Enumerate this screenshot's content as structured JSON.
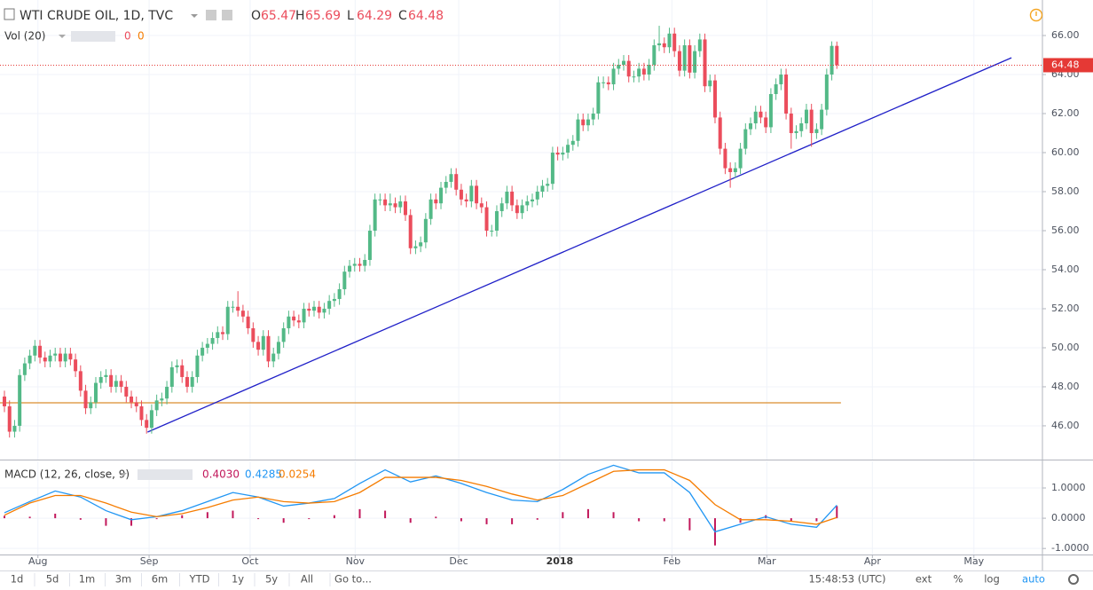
{
  "ui": {
    "symbol": "WTI CRUDE OIL, 1D, TVC",
    "ohlc_letters": [
      "O",
      "H",
      "L",
      "C"
    ],
    "volume": {
      "title": "Vol (20)",
      "values": [
        "0",
        "0"
      ]
    },
    "macd_title": "MACD (12, 26, close, 9)",
    "toolbar": [
      "1d",
      "5d",
      "1m",
      "3m",
      "6m",
      "YTD",
      "1y",
      "5y",
      "All",
      "Go to..."
    ],
    "clock": "15:48:53 (UTC)",
    "toggles": [
      "ext",
      "%",
      "log",
      "auto"
    ]
  },
  "chart_data": [
    {
      "type": "candlestick",
      "title": "WTI CRUDE OIL, 1D, TVC",
      "up_color": "#53b987",
      "down_color": "#eb4d5c",
      "grid": true,
      "xlim": [
        -0.874,
        204.5
      ],
      "xticks": [
        {
          "value": 6.6,
          "label": "Aug"
        },
        {
          "value": 28.5,
          "label": "Sep"
        },
        {
          "value": 48.4,
          "label": "Oct"
        },
        {
          "value": 69.1,
          "label": "Nov"
        },
        {
          "value": 89.5,
          "label": "Dec"
        },
        {
          "value": 109.4,
          "label": "2018"
        },
        {
          "value": 131.5,
          "label": "Feb"
        },
        {
          "value": 150.2,
          "label": "Mar"
        },
        {
          "value": 171,
          "label": "Apr"
        },
        {
          "value": 191,
          "label": "May"
        }
      ],
      "ylim": [
        44.27,
        67.82
      ],
      "yticks": [
        {
          "value": 46,
          "label": "46.00"
        },
        {
          "value": 48,
          "label": "48.00"
        },
        {
          "value": 50,
          "label": "50.00"
        },
        {
          "value": 52,
          "label": "52.00"
        },
        {
          "value": 54,
          "label": "54.00"
        },
        {
          "value": 56,
          "label": "56.00"
        },
        {
          "value": 58,
          "label": "58.00"
        },
        {
          "value": 60,
          "label": "60.00"
        },
        {
          "value": 62,
          "label": "62.00"
        },
        {
          "value": 64,
          "label": "64.00"
        },
        {
          "value": 66,
          "label": "66.00"
        }
      ],
      "o": [
        47.5,
        47.0,
        45.7,
        46.0,
        48.6,
        49.2,
        49.6,
        50.1,
        49.5,
        49.3,
        49.6,
        49.7,
        49.3,
        49.7,
        49.4,
        48.8,
        47.8,
        46.9,
        47.2,
        48.2,
        48.5,
        48.6,
        48.0,
        48.3,
        48.0,
        47.5,
        47.2,
        47.0,
        46.3,
        45.9,
        46.8,
        47.3,
        47.4,
        48.0,
        49.0,
        49.1,
        48.5,
        48.0,
        48.5,
        49.6,
        50.0,
        50.2,
        50.5,
        50.8,
        50.7,
        52.1,
        52.1,
        51.9,
        51.6,
        51.0,
        50.3,
        49.9,
        50.6,
        49.3,
        49.7,
        50.3,
        51.0,
        51.6,
        51.4,
        51.3,
        52.0,
        51.9,
        52.1,
        51.8,
        52.0,
        52.4,
        52.5,
        53.0,
        53.9,
        54.2,
        54.3,
        54.2,
        54.5,
        56.0,
        57.6,
        57.6,
        57.3,
        57.4,
        57.2,
        57.5,
        56.8,
        55.1,
        55.2,
        55.4,
        56.6,
        57.6,
        57.4,
        58.2,
        58.5,
        58.9,
        58.1,
        57.6,
        57.5,
        58.3,
        57.4,
        57.2,
        56.0,
        56.0,
        57.0,
        57.4,
        58.0,
        57.3,
        56.9,
        57.3,
        57.5,
        57.6,
        58.0,
        58.3,
        58.4,
        60.0,
        59.9,
        60.0,
        60.4,
        60.6,
        61.7,
        61.4,
        61.7,
        62.0,
        63.6,
        63.6,
        63.5,
        64.3,
        64.5,
        64.7,
        63.9,
        63.9,
        64.3,
        64.0,
        64.5,
        65.5,
        65.6,
        65.4,
        66.1,
        65.2,
        64.2,
        65.5,
        64.1,
        65.2,
        65.8,
        63.4,
        63.7,
        61.8,
        60.2,
        59.2,
        59.0,
        59.2,
        60.2,
        61.2,
        61.5,
        62.1,
        61.8,
        61.3,
        63.0,
        63.5,
        64.0,
        62.0,
        61.0,
        61.1,
        61.5,
        62.2,
        61.0,
        61.2,
        62.2,
        64.0,
        65.47
      ],
      "h": [
        47.8,
        47.3,
        46.3,
        48.9,
        49.5,
        49.9,
        50.4,
        50.4,
        49.8,
        49.9,
        50.0,
        50.0,
        50.0,
        50.0,
        49.7,
        49.1,
        48.1,
        47.5,
        48.5,
        48.8,
        48.9,
        48.9,
        48.6,
        48.6,
        48.3,
        47.8,
        47.5,
        47.3,
        46.6,
        47.1,
        47.6,
        47.7,
        48.3,
        49.3,
        49.4,
        49.4,
        48.8,
        48.8,
        49.9,
        50.3,
        50.5,
        50.8,
        51.1,
        51.1,
        52.4,
        52.4,
        52.9,
        52.2,
        51.9,
        51.3,
        50.6,
        50.9,
        50.9,
        50.0,
        50.6,
        51.3,
        51.9,
        51.9,
        51.7,
        52.3,
        52.3,
        52.4,
        52.4,
        52.3,
        52.7,
        52.8,
        53.3,
        54.2,
        54.5,
        54.6,
        54.6,
        54.8,
        56.3,
        57.9,
        57.9,
        57.9,
        57.9,
        57.7,
        57.8,
        57.8,
        57.1,
        55.5,
        55.7,
        56.9,
        57.9,
        57.9,
        58.5,
        58.8,
        59.2,
        59.2,
        58.4,
        57.9,
        58.6,
        58.6,
        57.7,
        57.5,
        56.3,
        57.3,
        57.7,
        58.3,
        58.3,
        57.6,
        57.6,
        57.8,
        57.9,
        58.3,
        58.6,
        58.7,
        60.3,
        60.3,
        60.3,
        60.7,
        60.9,
        62.0,
        62.0,
        62.0,
        62.3,
        63.9,
        63.9,
        63.9,
        64.6,
        64.8,
        65.0,
        65.0,
        64.2,
        64.6,
        64.6,
        64.8,
        65.8,
        66.5,
        65.9,
        66.4,
        66.4,
        65.5,
        65.8,
        65.8,
        65.5,
        66.1,
        66.1,
        64.0,
        64.0,
        62.1,
        60.5,
        59.5,
        59.5,
        60.5,
        61.5,
        61.8,
        62.4,
        62.4,
        62.1,
        63.3,
        63.8,
        64.3,
        64.3,
        62.3,
        61.4,
        61.8,
        62.5,
        62.5,
        61.5,
        62.5,
        64.3,
        65.7,
        65.69
      ],
      "l": [
        46.7,
        45.4,
        45.4,
        45.7,
        48.3,
        48.9,
        49.3,
        49.2,
        49.0,
        49.0,
        49.3,
        49.0,
        49.0,
        49.1,
        48.5,
        47.5,
        46.6,
        46.6,
        46.9,
        47.9,
        48.2,
        47.7,
        47.7,
        47.7,
        47.2,
        46.9,
        46.7,
        46.0,
        45.6,
        45.6,
        46.5,
        47.0,
        47.1,
        47.7,
        48.7,
        48.2,
        47.7,
        47.7,
        48.2,
        49.3,
        49.7,
        49.9,
        50.2,
        50.4,
        50.4,
        51.8,
        51.6,
        51.3,
        50.7,
        50.0,
        49.6,
        49.6,
        49.0,
        49.0,
        49.4,
        50.0,
        50.7,
        51.1,
        51.0,
        51.0,
        51.6,
        51.6,
        51.5,
        51.5,
        51.7,
        52.1,
        52.2,
        52.7,
        53.6,
        53.9,
        53.9,
        53.9,
        54.2,
        55.7,
        57.3,
        57.0,
        57.0,
        56.9,
        56.9,
        56.5,
        54.8,
        54.8,
        54.9,
        55.1,
        56.3,
        57.1,
        57.1,
        57.9,
        58.2,
        57.8,
        57.3,
        57.2,
        57.2,
        57.1,
        56.9,
        55.7,
        55.7,
        55.7,
        56.7,
        57.1,
        57.0,
        56.6,
        56.6,
        57.0,
        57.2,
        57.3,
        57.7,
        58.0,
        58.1,
        59.6,
        59.6,
        59.7,
        60.1,
        60.3,
        61.1,
        61.1,
        61.4,
        61.7,
        63.3,
        63.2,
        63.2,
        64.0,
        64.2,
        63.6,
        63.6,
        63.6,
        63.7,
        63.7,
        64.2,
        65.2,
        65.1,
        65.1,
        64.9,
        63.9,
        63.9,
        63.8,
        63.8,
        64.9,
        63.1,
        63.1,
        61.5,
        59.9,
        58.9,
        58.2,
        58.7,
        58.9,
        59.9,
        60.9,
        61.2,
        61.5,
        61.0,
        61.0,
        62.7,
        63.2,
        61.7,
        60.2,
        60.7,
        60.8,
        61.2,
        60.3,
        60.7,
        60.9,
        61.9,
        63.7,
        64.29
      ],
      "c": [
        47.0,
        45.7,
        46.0,
        48.6,
        49.2,
        49.6,
        50.1,
        49.5,
        49.3,
        49.6,
        49.7,
        49.3,
        49.7,
        49.4,
        48.8,
        47.8,
        46.9,
        47.2,
        48.2,
        48.5,
        48.6,
        48.0,
        48.3,
        48.0,
        47.5,
        47.2,
        47.0,
        46.3,
        45.9,
        46.8,
        47.3,
        47.4,
        48.0,
        49.0,
        49.1,
        48.5,
        48.0,
        48.5,
        49.6,
        50.0,
        50.2,
        50.5,
        50.8,
        50.7,
        52.1,
        52.1,
        51.9,
        51.6,
        51.0,
        50.3,
        49.9,
        50.6,
        49.3,
        49.7,
        50.3,
        51.0,
        51.6,
        51.4,
        51.3,
        52.0,
        51.9,
        52.1,
        51.8,
        52.0,
        52.4,
        52.5,
        53.0,
        53.9,
        54.2,
        54.3,
        54.2,
        54.5,
        56.0,
        57.6,
        57.6,
        57.3,
        57.4,
        57.2,
        57.5,
        56.8,
        55.1,
        55.2,
        55.4,
        56.6,
        57.6,
        57.4,
        58.2,
        58.5,
        58.9,
        58.1,
        57.6,
        57.5,
        58.3,
        57.4,
        57.2,
        56.0,
        56.0,
        57.0,
        57.4,
        58.0,
        57.3,
        56.9,
        57.3,
        57.5,
        57.6,
        58.0,
        58.3,
        58.4,
        60.0,
        59.9,
        60.0,
        60.4,
        60.6,
        61.7,
        61.4,
        61.7,
        62.0,
        63.6,
        63.6,
        63.5,
        64.3,
        64.5,
        64.7,
        63.9,
        63.9,
        64.3,
        64.0,
        64.5,
        65.5,
        65.6,
        65.4,
        66.1,
        65.2,
        64.2,
        65.5,
        64.1,
        65.2,
        65.8,
        63.4,
        63.7,
        61.8,
        60.2,
        59.2,
        59.0,
        59.2,
        60.2,
        61.2,
        61.5,
        62.1,
        61.8,
        61.3,
        63.0,
        63.5,
        64.0,
        62.0,
        61.0,
        61.1,
        61.5,
        62.2,
        61.0,
        61.2,
        62.2,
        64.0,
        65.47,
        64.48
      ],
      "last_price_color": "#e53935",
      "hline": {
        "value": 47.18,
        "color": "#e0a050"
      },
      "trendline": {
        "x": [
          28.2,
          198.4
        ],
        "y": [
          45.68,
          64.86
        ],
        "color": "#2020c8"
      }
    },
    {
      "type": "macd",
      "title": "MACD (12, 26, close, 9)",
      "grid": true,
      "xlim": [
        -0.874,
        204.5
      ],
      "ylim": [
        -1.2,
        1.88
      ],
      "yticks": [
        {
          "value": 1,
          "label": "1.0000"
        },
        {
          "value": 0,
          "label": "0.0000"
        },
        {
          "value": -1,
          "label": "-1.0000"
        }
      ],
      "x": [
        0,
        5,
        10,
        15,
        20,
        25,
        30,
        35,
        40,
        45,
        50,
        55,
        60,
        65,
        70,
        75,
        80,
        85,
        90,
        95,
        100,
        105,
        110,
        115,
        120,
        125,
        130,
        135,
        140,
        145,
        150,
        155,
        160,
        164
      ],
      "series": [
        {
          "kind": "bar",
          "color": "#c2185b",
          "value_label": "0.4030",
          "values": [
            0.08,
            0.05,
            0.15,
            -0.05,
            -0.25,
            -0.25,
            0,
            0.1,
            0.2,
            0.25,
            0,
            -0.15,
            0,
            0.1,
            0.3,
            0.25,
            -0.15,
            0.05,
            -0.1,
            -0.2,
            -0.2,
            -0.05,
            0.2,
            0.3,
            0.2,
            -0.1,
            -0.1,
            -0.4,
            -0.9,
            -0.15,
            0.1,
            -0.1,
            -0.1,
            0.403
          ]
        },
        {
          "kind": "line",
          "color": "#2196f3",
          "value_label": "0.4285",
          "values": [
            0.18,
            0.55,
            0.9,
            0.7,
            0.25,
            -0.05,
            0.05,
            0.25,
            0.55,
            0.85,
            0.7,
            0.4,
            0.5,
            0.65,
            1.15,
            1.6,
            1.2,
            1.4,
            1.15,
            0.85,
            0.6,
            0.55,
            0.95,
            1.45,
            1.75,
            1.5,
            1.5,
            0.85,
            -0.45,
            -0.2,
            0.05,
            -0.2,
            -0.3,
            0.4285
          ]
        },
        {
          "kind": "line",
          "color": "#f57c00",
          "value_label": "0.0254",
          "values": [
            0.1,
            0.5,
            0.75,
            0.75,
            0.5,
            0.2,
            0.05,
            0.15,
            0.35,
            0.6,
            0.7,
            0.55,
            0.5,
            0.55,
            0.85,
            1.35,
            1.35,
            1.35,
            1.25,
            1.05,
            0.8,
            0.6,
            0.75,
            1.15,
            1.55,
            1.6,
            1.6,
            1.25,
            0.45,
            -0.05,
            -0.05,
            -0.1,
            -0.2,
            0.0254
          ]
        }
      ]
    }
  ]
}
